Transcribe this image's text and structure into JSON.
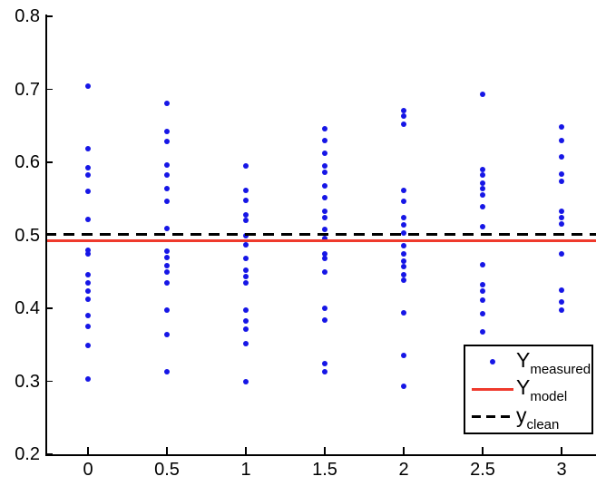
{
  "colors": {
    "measured_blue": "#1616e6",
    "model_red": "#ef3a2d",
    "clean_black": "#000000",
    "axis": "#000000",
    "background": "#ffffff"
  },
  "chart_data": {
    "type": "scatter",
    "title": "",
    "xlabel": "",
    "ylabel": "",
    "xlim": [
      -0.27,
      3.22
    ],
    "ylim": [
      0.2,
      0.8
    ],
    "grid": false,
    "x_ticks": [
      0,
      0.5,
      1,
      1.5,
      2,
      2.5,
      3
    ],
    "x_tick_labels": [
      "0",
      "0.5",
      "1",
      "1.5",
      "2",
      "2.5",
      "3"
    ],
    "y_ticks": [
      0.2,
      0.3,
      0.4,
      0.5,
      0.6,
      0.7,
      0.8
    ],
    "y_tick_labels": [
      "0.2",
      "0.3",
      "0.4",
      "0.5",
      "0.6",
      "0.7",
      "0.8"
    ],
    "series": [
      {
        "name": "Y_measured",
        "type": "scatter",
        "color": "#1616e6",
        "points": [
          {
            "x": 0,
            "y": [
              0.704,
              0.619,
              0.592,
              0.582,
              0.56,
              0.522,
              0.48,
              0.474,
              0.446,
              0.435,
              0.423,
              0.412,
              0.39,
              0.375,
              0.349,
              0.303
            ]
          },
          {
            "x": 0.5,
            "y": [
              0.681,
              0.642,
              0.629,
              0.596,
              0.583,
              0.564,
              0.547,
              0.509,
              0.478,
              0.47,
              0.458,
              0.45,
              0.435,
              0.398,
              0.364,
              0.313
            ]
          },
          {
            "x": 1,
            "y": [
              0.595,
              0.562,
              0.548,
              0.528,
              0.52,
              0.5,
              0.487,
              0.468,
              0.452,
              0.444,
              0.435,
              0.398,
              0.383,
              0.371,
              0.352,
              0.299
            ]
          },
          {
            "x": 1.5,
            "y": [
              0.646,
              0.63,
              0.613,
              0.595,
              0.586,
              0.568,
              0.551,
              0.533,
              0.524,
              0.508,
              0.496,
              0.474,
              0.468,
              0.45,
              0.4,
              0.384,
              0.324,
              0.313
            ]
          },
          {
            "x": 2,
            "y": [
              0.671,
              0.663,
              0.652,
              0.561,
              0.547,
              0.524,
              0.514,
              0.503,
              0.486,
              0.475,
              0.465,
              0.457,
              0.446,
              0.438,
              0.394,
              0.336,
              0.293
            ]
          },
          {
            "x": 2.5,
            "y": [
              0.693,
              0.59,
              0.582,
              0.572,
              0.564,
              0.555,
              0.539,
              0.512,
              0.46,
              0.432,
              0.424,
              0.411,
              0.392,
              0.368
            ]
          },
          {
            "x": 3,
            "y": [
              0.648,
              0.63,
              0.607,
              0.584,
              0.574,
              0.533,
              0.524,
              0.516,
              0.475,
              0.425,
              0.409,
              0.398
            ]
          }
        ]
      },
      {
        "name": "Y_model",
        "type": "hline",
        "style": "solid",
        "color": "#ef3a2d",
        "y": 0.493
      },
      {
        "name": "y_clean",
        "type": "hline",
        "style": "dashed",
        "color": "#000000",
        "y": 0.501
      }
    ],
    "legend": {
      "position": "lower right",
      "entries": [
        {
          "main": "Y",
          "sub": "measured",
          "marker": "dot",
          "color": "#1616e6"
        },
        {
          "main": "Y",
          "sub": "model",
          "marker": "solid-line",
          "color": "#ef3a2d"
        },
        {
          "main": "y",
          "sub": "clean",
          "marker": "dashed-line",
          "color": "#000000"
        }
      ]
    }
  }
}
